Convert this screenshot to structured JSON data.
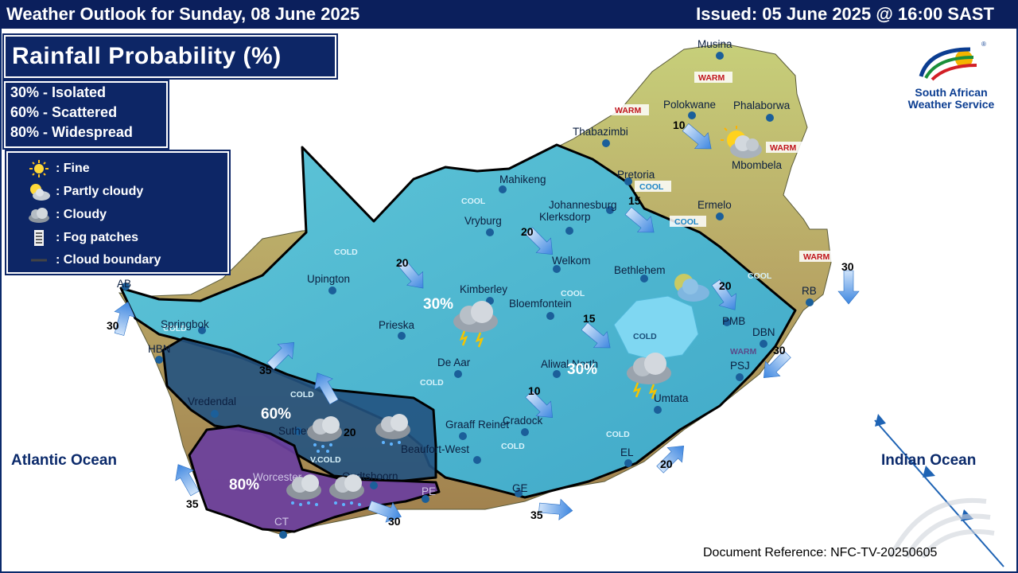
{
  "header": {
    "left": "Weather Outlook for Sunday, 08 June 2025",
    "right": "Issued: 05 June 2025 @ 16:00 SAST"
  },
  "title": "Rainfall Probability (%)",
  "probability_key": [
    "30% - Isolated",
    "60% - Scattered",
    "80% - Widespread"
  ],
  "legend": [
    {
      "icon": "sun-icon",
      "label": ": Fine"
    },
    {
      "icon": "partly-cloudy-icon",
      "label": ": Partly cloudy"
    },
    {
      "icon": "cloud-icon",
      "label": ": Cloudy"
    },
    {
      "icon": "fog-icon",
      "label": ": Fog patches"
    },
    {
      "icon": "cloud-boundary-line-icon",
      "label": ": Cloud boundary"
    }
  ],
  "logo": {
    "line1": "South African",
    "line2": "Weather Service"
  },
  "oceans": {
    "atlantic": "Atlantic Ocean",
    "indian": "Indian Ocean"
  },
  "cities": {
    "musina": "Musina",
    "polokwane": "Polokwane",
    "phalaborwa": "Phalaborwa",
    "thabazimbi": "Thabazimbi",
    "mbombela": "Mbombela",
    "pretoria": "Pretoria",
    "mahikeng": "Mahikeng",
    "johannesburg": "Johannesburg",
    "klerksdorp": "Klerksdorp",
    "vryburg": "Vryburg",
    "ermelo": "Ermelo",
    "welkom": "Welkom",
    "bethlehem": "Bethlehem",
    "upington": "Upington",
    "kimberley": "Kimberley",
    "bloemfontein": "Bloemfontein",
    "prieska": "Prieska",
    "springbok": "Springbok",
    "ab": "AB",
    "hbn": "HBN",
    "dear": "De Aar",
    "aliwal_north": "Aliwal North",
    "pmb": "PMB",
    "dbn": "DBN",
    "psj": "PSJ",
    "rb": "RB",
    "umtata": "Umtata",
    "vredendal": "Vredendal",
    "sutherland": "Sutherland",
    "graaff_reinet": "Graaff Reinet",
    "cradock": "Cradock",
    "beaufort_west": "Beaufort-West",
    "el": "EL",
    "oudtshoorn": "Oudtshoorn",
    "ge": "GE",
    "pe": "PE",
    "worcester": "Worcester",
    "ct": "CT"
  },
  "temperature_labels": {
    "warm": "WARM",
    "cool": "COOL",
    "cold": "COLD",
    "very_cold": "V.COLD"
  },
  "rain_percent": {
    "p30": "30%",
    "p60": "60%",
    "p80": "80%"
  },
  "wind_speeds": [
    "10",
    "15",
    "20",
    "20",
    "20",
    "15",
    "35",
    "10",
    "20",
    "30",
    "30",
    "20",
    "30",
    "35",
    "35",
    "30"
  ],
  "doc_reference": "Document Reference: NFC-TV-20250605",
  "colors": {
    "header": "#0b1f5c",
    "cool_region": "#55bfd6",
    "scattered_region": "#24507d",
    "widespread_region": "#6a3f9e",
    "arrow": "#4a90e2",
    "front_line": "#1e63b4"
  }
}
